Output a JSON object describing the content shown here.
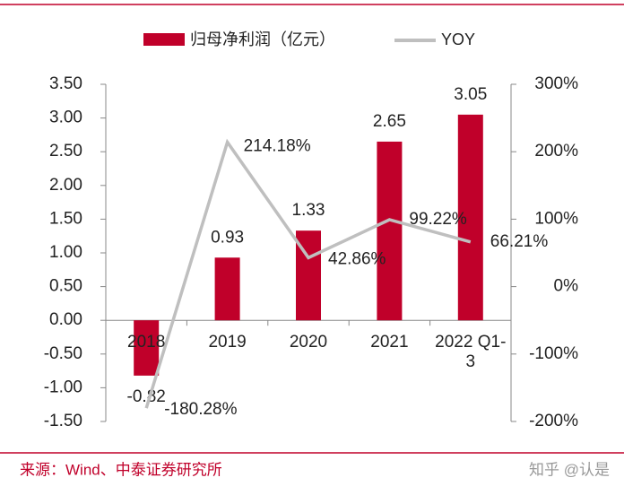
{
  "chart_data": {
    "type": "bar",
    "categories": [
      "2018",
      "2019",
      "2020",
      "2021",
      "2022 Q1-3"
    ],
    "series": [
      {
        "name": "归母净利润（亿元）",
        "type": "bar",
        "color": "#c0002a",
        "values": [
          -0.82,
          0.93,
          1.33,
          2.65,
          3.05
        ]
      },
      {
        "name": "YOY",
        "type": "line",
        "axis": "y2",
        "color": "#bfbfbf",
        "values": [
          -180.28,
          214.18,
          42.86,
          99.22,
          66.21
        ],
        "value_labels": [
          "-180.28%",
          "214.18%",
          "42.86%",
          "99.22%",
          "66.21%"
        ]
      }
    ],
    "ylim": [
      -1.5,
      3.5
    ],
    "yticks": [
      {
        "value": 3.5,
        "label": "3.50"
      },
      {
        "value": 3,
        "label": "3.00"
      },
      {
        "value": 2.5,
        "label": "2.50"
      },
      {
        "value": 2,
        "label": "2.00"
      },
      {
        "value": 1.5,
        "label": "1.50"
      },
      {
        "value": 1,
        "label": "1.00"
      },
      {
        "value": 0.5,
        "label": "0.50"
      },
      {
        "value": 0,
        "label": "0.00"
      },
      {
        "value": -0.5,
        "label": "-0.50"
      },
      {
        "value": -1,
        "label": "-1.00"
      },
      {
        "value": -1.5,
        "label": "-1.50"
      }
    ],
    "y2lim": [
      -200,
      300
    ],
    "y2ticks": [
      {
        "value": 300,
        "label": "300%"
      },
      {
        "value": 200,
        "label": "200%"
      },
      {
        "value": 100,
        "label": "100%"
      },
      {
        "value": 0,
        "label": "0%"
      },
      {
        "value": -100,
        "label": "-100%"
      },
      {
        "value": -200,
        "label": "-200%"
      }
    ],
    "source": "来源：Wind、中泰证券研究所",
    "watermark": "知乎 @认是"
  }
}
